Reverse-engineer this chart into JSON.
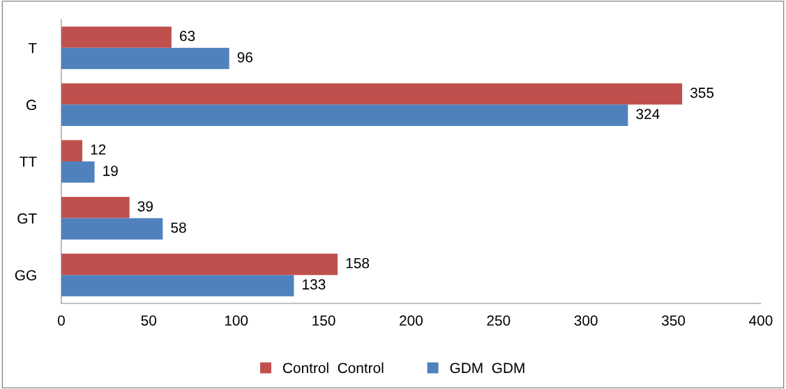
{
  "chart_data": {
    "type": "bar",
    "orientation": "horizontal",
    "categories": [
      "T",
      "G",
      "TT",
      "GT",
      "GG"
    ],
    "series": [
      {
        "name": "Control  Control",
        "color": "#c0504d",
        "values": [
          63,
          355,
          12,
          39,
          158
        ]
      },
      {
        "name": "GDM  GDM",
        "color": "#4f81bd",
        "values": [
          96,
          324,
          19,
          58,
          133
        ]
      }
    ],
    "xlim": [
      0,
      400
    ],
    "xticks": [
      0,
      50,
      100,
      150,
      200,
      250,
      300,
      350,
      400
    ],
    "data_labels": true,
    "legend": "bottom",
    "grid": false
  }
}
